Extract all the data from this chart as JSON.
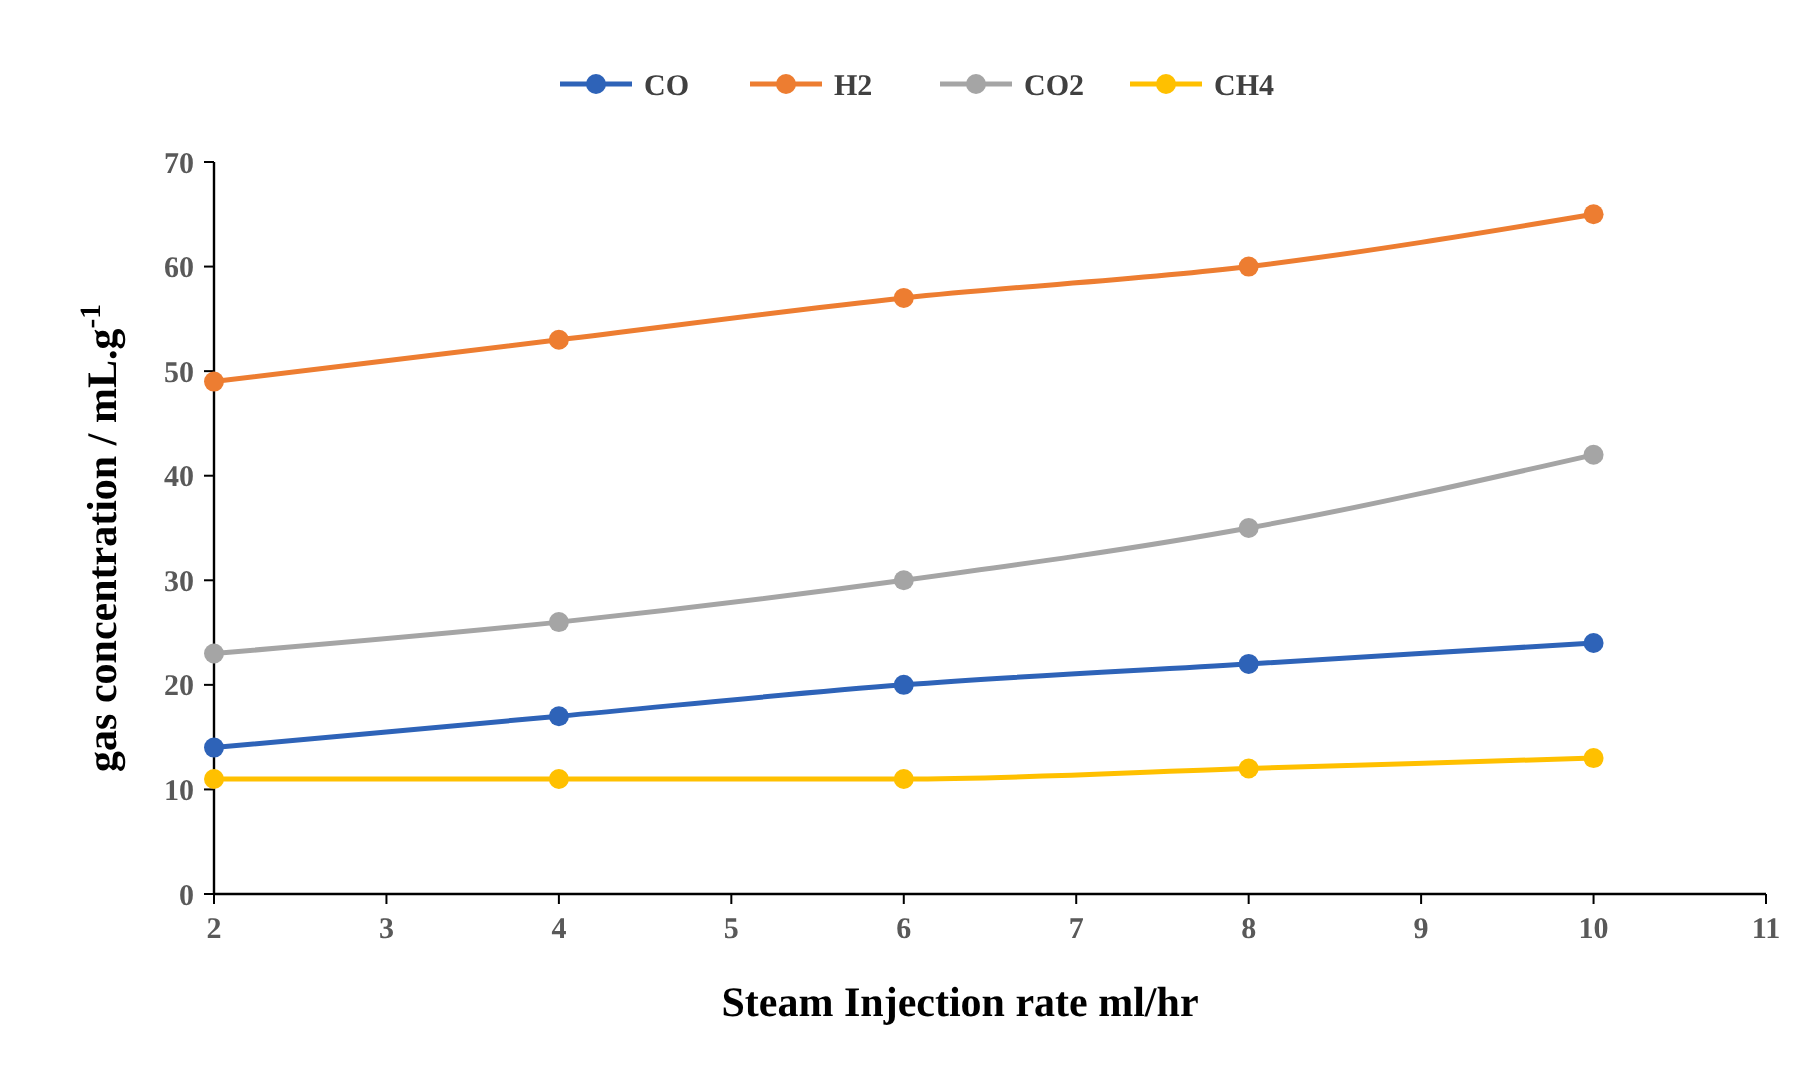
{
  "chart_data": {
    "type": "line",
    "xlabel": "Steam Injection rate  ml/hr",
    "ylabel": "gas concentration / mL.g$^{-1}$",
    "x": [
      2,
      4,
      6,
      8,
      10
    ],
    "series": [
      {
        "name": "CO",
        "color": "#2e63b8",
        "values": [
          14,
          17,
          20,
          22,
          24
        ]
      },
      {
        "name": "H2",
        "color": "#ed7d31",
        "values": [
          49,
          53,
          57,
          60,
          65
        ]
      },
      {
        "name": "CO2",
        "color": "#a5a5a5",
        "values": [
          23,
          26,
          30,
          35,
          42
        ]
      },
      {
        "name": "CH4",
        "color": "#ffc000",
        "values": [
          11,
          11,
          11,
          12,
          13
        ]
      }
    ],
    "xlim": [
      2,
      11
    ],
    "xticks": [
      2,
      3,
      4,
      5,
      6,
      7,
      8,
      9,
      10,
      11
    ],
    "ylim": [
      0,
      70
    ],
    "yticks": [
      0,
      10,
      20,
      30,
      40,
      50,
      60,
      70
    ],
    "grid": false,
    "legend": "top",
    "marker": "circle",
    "line_style": "solid"
  }
}
